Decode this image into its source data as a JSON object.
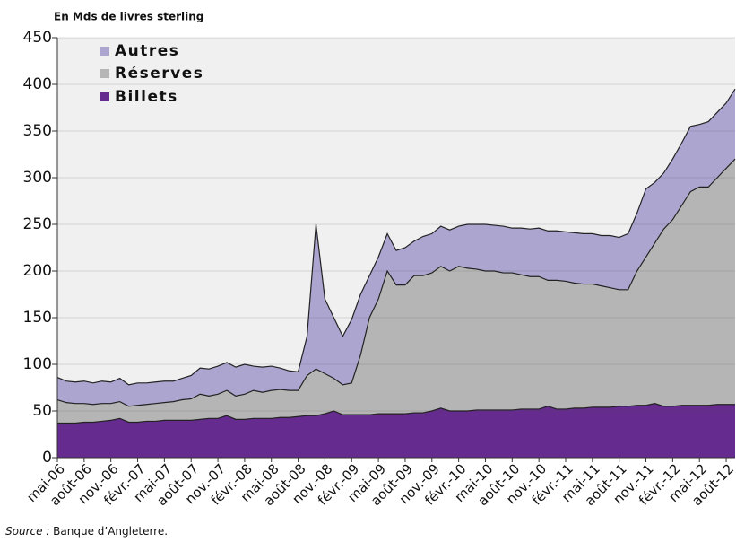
{
  "chart_data": {
    "type": "stacked-area",
    "subtitle": "En Mds de livres sterling",
    "source_label": "Source :",
    "source": "Banque d’Angleterre.",
    "categories": [
      "mai-06",
      null,
      null,
      "août-06",
      null,
      null,
      "nov.-06",
      null,
      null,
      "févr.-07",
      null,
      null,
      "mai-07",
      null,
      null,
      "août-07",
      null,
      null,
      "nov.-07",
      null,
      null,
      "févr.-08",
      null,
      null,
      "mai-08",
      null,
      null,
      "août-08",
      null,
      null,
      "nov.-08",
      null,
      null,
      "févr.-09",
      null,
      null,
      "mai-09",
      null,
      null,
      "août-09",
      null,
      null,
      "nov.-09",
      null,
      null,
      "févr.-10",
      null,
      null,
      "mai-10",
      null,
      null,
      "août-10",
      null,
      null,
      "nov.-10",
      null,
      null,
      "févr.-11",
      null,
      null,
      "mai-11",
      null,
      null,
      "août-11",
      null,
      null,
      "nov.-11",
      null,
      null,
      "févr.-12",
      null,
      null,
      "mai-12",
      null,
      null,
      "août-12",
      null
    ],
    "series": [
      {
        "name": "Billets",
        "color": "#652b8e",
        "values": [
          37,
          37,
          37,
          38,
          38,
          39,
          40,
          42,
          38,
          38,
          39,
          39,
          40,
          40,
          40,
          40,
          41,
          42,
          42,
          45,
          41,
          41,
          42,
          42,
          42,
          43,
          43,
          44,
          45,
          45,
          47,
          50,
          46,
          46,
          46,
          46,
          47,
          47,
          47,
          47,
          48,
          48,
          50,
          53,
          50,
          50,
          50,
          51,
          51,
          51,
          51,
          51,
          52,
          52,
          52,
          55,
          52,
          52,
          53,
          53,
          54,
          54,
          54,
          55,
          55,
          56,
          56,
          58,
          55,
          55,
          56,
          56,
          56,
          56,
          57,
          57,
          57
        ]
      },
      {
        "name": "Réserves",
        "color": "#b5b5b5",
        "values": [
          25,
          22,
          21,
          20,
          19,
          19,
          18,
          18,
          17,
          18,
          18,
          19,
          19,
          20,
          22,
          23,
          27,
          24,
          26,
          27,
          25,
          27,
          30,
          28,
          30,
          30,
          29,
          28,
          43,
          50,
          43,
          35,
          32,
          34,
          64,
          104,
          123,
          153,
          138,
          138,
          147,
          147,
          148,
          152,
          150,
          155,
          153,
          151,
          149,
          149,
          147,
          147,
          144,
          142,
          142,
          135,
          138,
          137,
          134,
          133,
          132,
          130,
          128,
          125,
          125,
          144,
          159,
          172,
          190,
          200,
          214,
          229,
          234,
          234,
          243,
          253,
          263
        ]
      },
      {
        "name": "Autres",
        "color": "#aba5cf",
        "values": [
          24,
          23,
          23,
          24,
          23,
          24,
          23,
          25,
          23,
          24,
          23,
          23,
          23,
          22,
          23,
          25,
          28,
          29,
          30,
          30,
          31,
          32,
          26,
          27,
          26,
          23,
          21,
          20,
          42,
          155,
          80,
          65,
          52,
          68,
          65,
          45,
          45,
          40,
          37,
          40,
          37,
          42,
          42,
          43,
          44,
          43,
          47,
          48,
          50,
          49,
          50,
          48,
          50,
          51,
          52,
          53,
          53,
          53,
          54,
          54,
          54,
          54,
          56,
          56,
          60,
          62,
          73,
          65,
          60,
          65,
          67,
          70,
          67,
          70,
          70,
          70,
          75
        ]
      }
    ],
    "ylim": [
      0,
      450
    ],
    "yticks": [
      0,
      50,
      100,
      150,
      200,
      250,
      300,
      350,
      400,
      450
    ],
    "grid": true,
    "legend": "upper-left"
  }
}
